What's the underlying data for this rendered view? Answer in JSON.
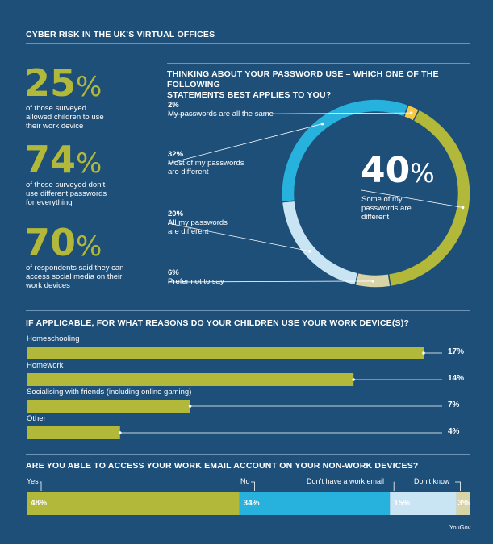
{
  "title": "CYBER RISK IN THE UK’S VIRTUAL OFFICES",
  "stats": [
    {
      "value": "25",
      "unit": "%",
      "text": [
        "of those surveyed",
        "allowed children to use",
        "their work device"
      ]
    },
    {
      "value": "74",
      "unit": "%",
      "text": [
        "of those surveyed don’t",
        "use different passwords",
        "for everything"
      ]
    },
    {
      "value": "70",
      "unit": "%",
      "text": [
        "of respondents said they can",
        "access social media on their",
        "work devices"
      ]
    }
  ],
  "colors": {
    "background": "#1e4f78",
    "olive": "#b1b83a",
    "blue": "#27b2dd",
    "lightblue": "#c9e4f3",
    "beige": "#d9d4a8",
    "yellow": "#f7c843"
  },
  "chart_data": [
    {
      "type": "pie",
      "title": "THINKING ABOUT YOUR PASSWORD USE – WHICH ONE OF THE FOLLOWING STATEMENTS BEST APPLIES TO YOU?",
      "title_lines": [
        "THINKING ABOUT YOUR PASSWORD USE – WHICH ONE OF THE FOLLOWING",
        "STATEMENTS BEST APPLIES TO YOU?"
      ],
      "center_value": "40",
      "center_unit": "%",
      "center_label": [
        "Some of my",
        "passwords are",
        "different"
      ],
      "slices": [
        {
          "label": "My passwords are all the same",
          "label_lines": [
            "My passwords are all the same"
          ],
          "value": 2,
          "value_text": "2%",
          "color": "#f7c843"
        },
        {
          "label": "Some of my passwords are different",
          "value": 40,
          "value_text": "40%",
          "color": "#b1b83a"
        },
        {
          "label": "Prefer not to say",
          "label_lines": [
            "Prefer not to say"
          ],
          "value": 6,
          "value_text": "6%",
          "color": "#d9d4a8"
        },
        {
          "label": "All my passwords are different",
          "label_lines": [
            "All my passwords",
            "are different"
          ],
          "value": 20,
          "value_text": "20%",
          "color": "#c9e4f3"
        },
        {
          "label": "Most of my passwords are different",
          "label_lines": [
            "Most of my passwords",
            "are different"
          ],
          "value": 32,
          "value_text": "32%",
          "color": "#27b2dd"
        }
      ]
    },
    {
      "type": "bar",
      "orientation": "horizontal",
      "title": "IF APPLICABLE, FOR WHAT REASONS DO YOUR CHILDREN USE YOUR WORK DEVICE(S)?",
      "categories": [
        "Homeschooling",
        "Homework",
        "Socialising with friends (including online gaming)",
        "Other"
      ],
      "values": [
        17,
        14,
        7,
        4
      ],
      "value_labels": [
        "17%",
        "14%",
        "7%",
        "4%"
      ],
      "color": "#b1b83a"
    },
    {
      "type": "bar",
      "orientation": "stacked-horizontal",
      "title": "ARE YOU ABLE TO ACCESS YOUR WORK EMAIL ACCOUNT ON YOUR NON-WORK DEVICES?",
      "categories": [
        "Yes",
        "No",
        "Don’t have a work email",
        "Don’t know"
      ],
      "values": [
        48,
        34,
        15,
        3
      ],
      "value_labels": [
        "48%",
        "34%",
        "15%",
        "3%"
      ],
      "colors": [
        "#b1b83a",
        "#27b2dd",
        "#c9e4f3",
        "#d9d4a8"
      ]
    }
  ],
  "source": "YouGov"
}
